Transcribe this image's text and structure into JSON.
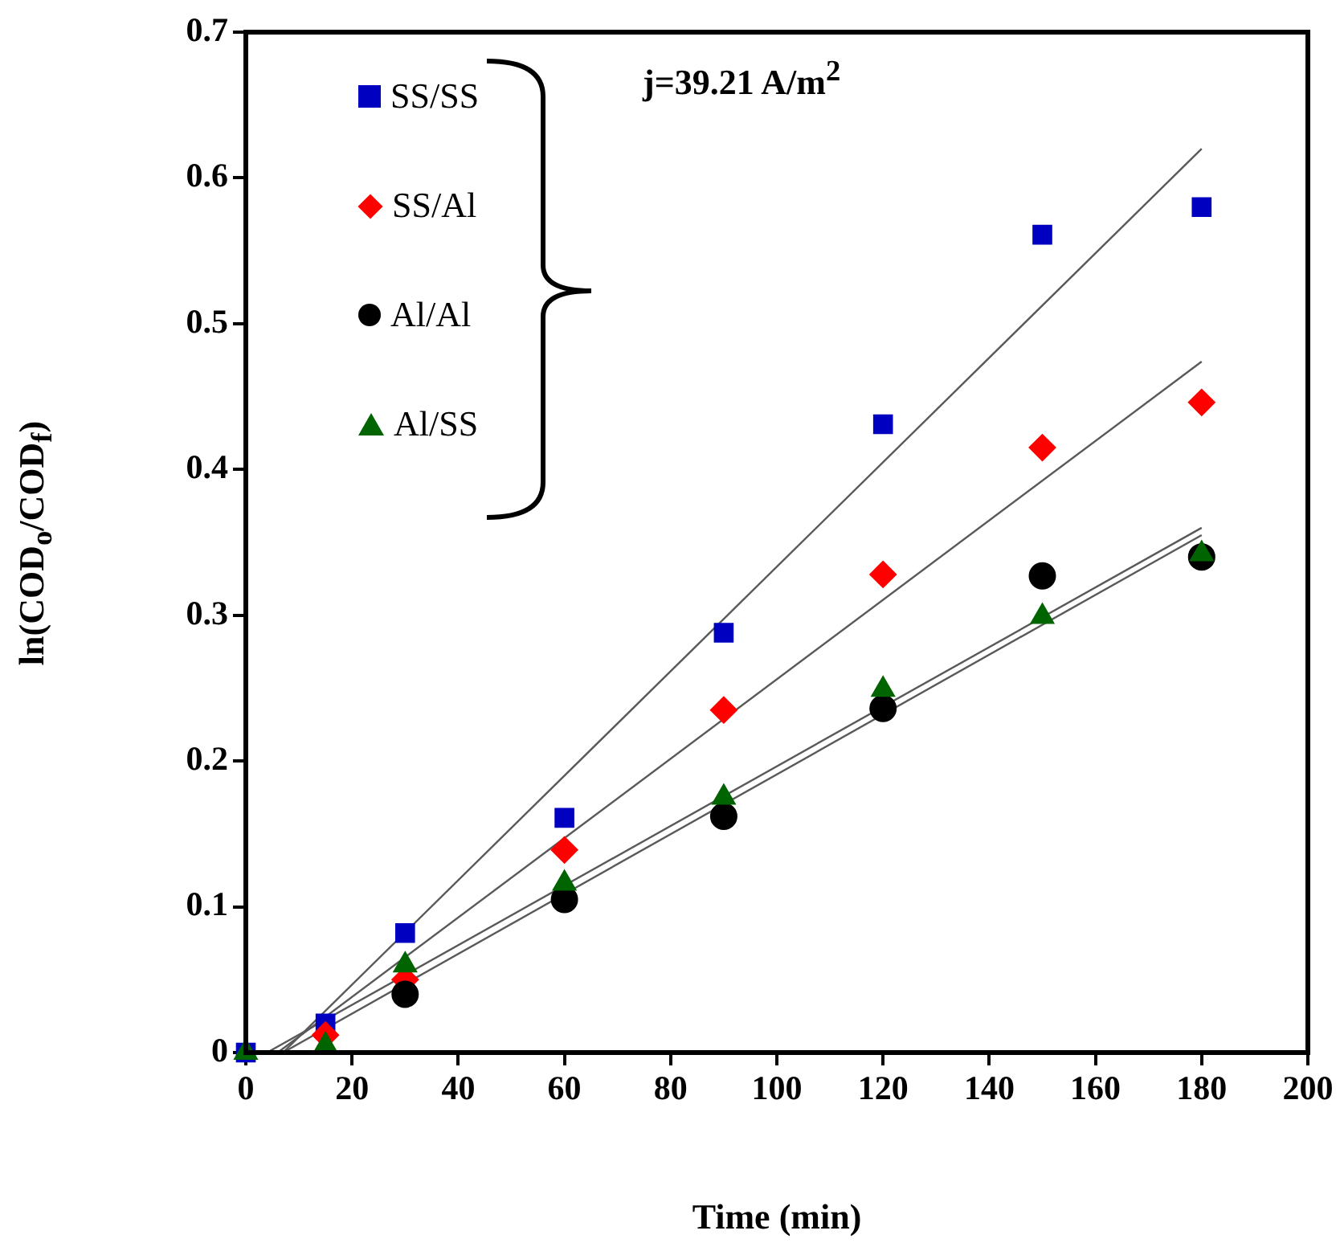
{
  "chart_data": {
    "type": "scatter",
    "xlabel": "Time (min)",
    "ylabel": "ln(COD$_{o}$/COD$_{f}$)",
    "annotations": [
      "j=39.21 A/m$^{2}$"
    ],
    "x": [
      0,
      15,
      30,
      60,
      90,
      120,
      150,
      180
    ],
    "xlim": [
      0,
      200
    ],
    "xticks": [
      0,
      20,
      40,
      60,
      80,
      100,
      120,
      140,
      160,
      180,
      200
    ],
    "ylim": [
      0,
      0.7
    ],
    "yticks": [
      0,
      0.1,
      0.2,
      0.3,
      0.4,
      0.5,
      0.6,
      0.7
    ],
    "grid": false,
    "legend": "top left",
    "series": [
      {
        "name": "SS/SS",
        "color": "#0000c0",
        "marker": "square",
        "values": [
          0,
          0.02,
          0.082,
          0.161,
          0.288,
          0.431,
          0.561,
          0.58
        ]
      },
      {
        "name": "SS/Al",
        "color": "#ff0000",
        "marker": "diamond",
        "values": [
          null,
          0.012,
          0.05,
          0.139,
          0.235,
          0.328,
          0.415,
          0.446
        ]
      },
      {
        "name": "Al/Al",
        "color": "#000000",
        "marker": "circle",
        "values": [
          null,
          null,
          0.04,
          0.105,
          0.162,
          0.236,
          0.327,
          0.34
        ]
      },
      {
        "name": "Al/SS",
        "color": "#006400",
        "marker": "triangle",
        "values": [
          0,
          0.005,
          0.06,
          0.116,
          0.175,
          0.249,
          0.299,
          0.342
        ]
      },
      {
        "type": "line",
        "color": "#595959",
        "marker": "none",
        "x": [
          7,
          180
        ],
        "values": [
          0,
          0.62
        ]
      },
      {
        "type": "line",
        "color": "#595959",
        "marker": "none",
        "x": [
          6,
          180
        ],
        "values": [
          0,
          0.474
        ]
      },
      {
        "type": "line",
        "color": "#595959",
        "marker": "none",
        "x": [
          7,
          180
        ],
        "values": [
          0,
          0.355
        ]
      },
      {
        "type": "line",
        "color": "#595959",
        "marker": "none",
        "x": [
          4,
          180
        ],
        "values": [
          0,
          0.36
        ]
      }
    ]
  }
}
